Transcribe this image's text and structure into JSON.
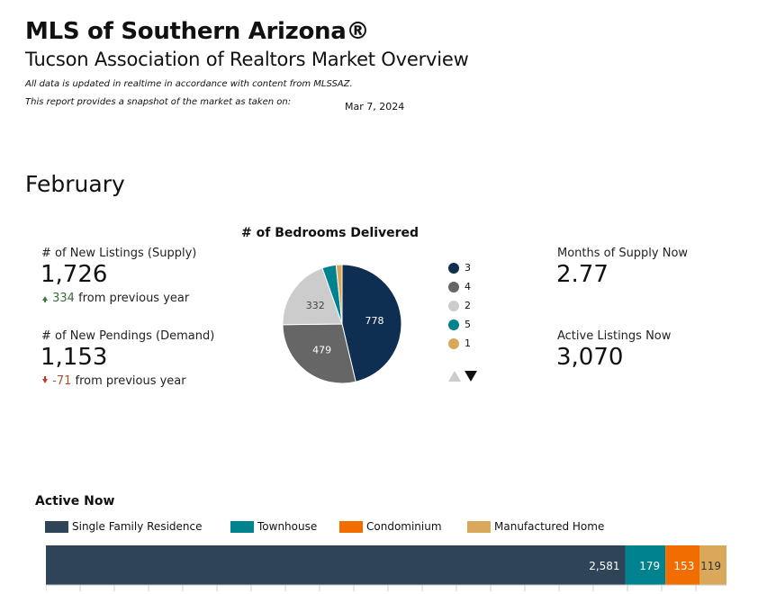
{
  "header": {
    "title": "MLS of Southern Arizona®",
    "subtitle": "Tucson Association of Realtors Market Overview",
    "note_realtime": "All data is updated in realtime in accordance with content from MLSSAZ.",
    "note_snapshot": "This report provides a snapshot of the market as taken on:",
    "report_date": "Mar 7, 2024"
  },
  "period": {
    "month": "February"
  },
  "kpis": {
    "new_listings": {
      "label": "# of New Listings (Supply)",
      "value": "1,726",
      "change": "334",
      "change_suffix": "from previous year",
      "direction": "up"
    },
    "new_pendings": {
      "label": "# of New Pendings (Demand)",
      "value": "1,153",
      "change": "-71",
      "change_suffix": "from previous year",
      "direction": "down"
    },
    "months_supply": {
      "label": "Months of Supply Now",
      "value": "2.77"
    },
    "active_listings": {
      "label": "Active Listings Now",
      "value": "3,070"
    }
  },
  "colors": {
    "bed_3": "#0f2f52",
    "bed_4": "#666666",
    "bed_2": "#cccccc",
    "bed_5": "#00838f",
    "bed_1": "#d9a85b",
    "single_family": "#2f4456",
    "townhouse": "#00838f",
    "condominium": "#f26d00",
    "manufactured": "#d9a85b"
  },
  "chart_data": [
    {
      "type": "pie",
      "title": "# of Bedrooms Delivered",
      "labels": [
        "3",
        "4",
        "2",
        "5",
        "1"
      ],
      "values": [
        778,
        479,
        332,
        64,
        27
      ],
      "data_labels": [
        "778",
        "479",
        "332",
        "",
        ""
      ],
      "legend": "right"
    },
    {
      "type": "bar",
      "orientation": "horizontal-stacked",
      "title": "Active Now",
      "categories": [
        "Active"
      ],
      "series": [
        {
          "name": "Single Family Residence",
          "values": [
            2581
          ],
          "label": "2,581"
        },
        {
          "name": "Townhouse",
          "values": [
            179
          ],
          "label": "179"
        },
        {
          "name": "Condominium",
          "values": [
            153
          ],
          "label": "153"
        },
        {
          "name": "Manufactured Home",
          "values": [
            119
          ],
          "label": "119"
        }
      ],
      "legend": "top"
    }
  ]
}
